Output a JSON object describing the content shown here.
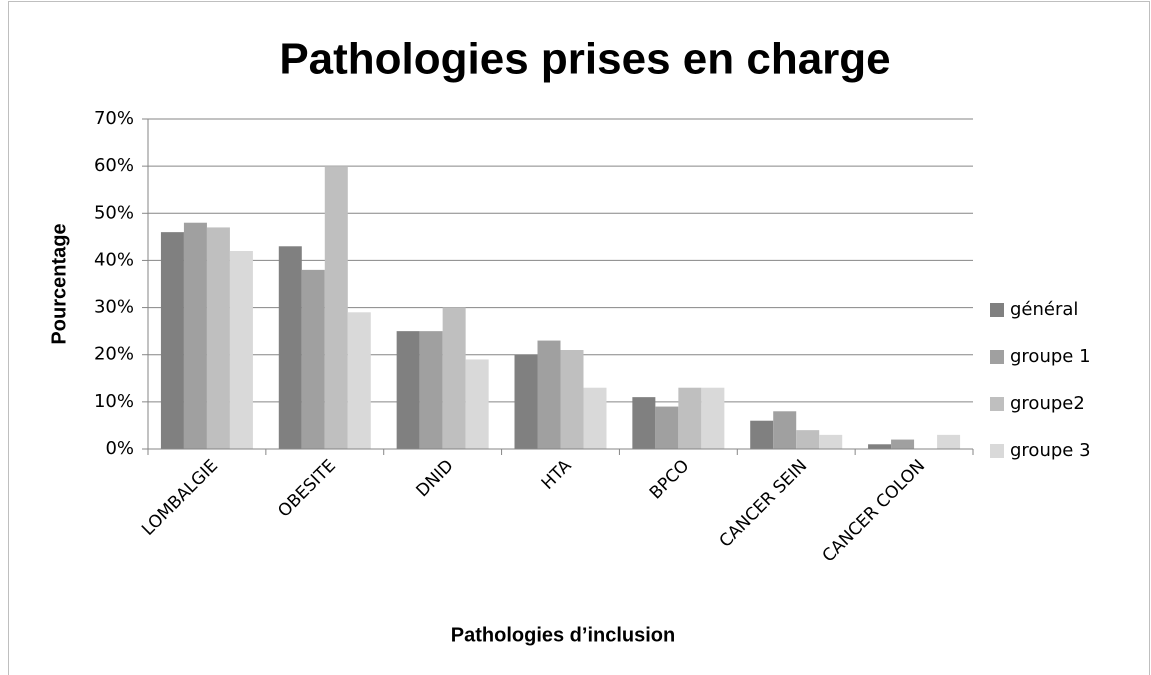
{
  "chart_data": {
    "type": "bar",
    "title": "Pathologies prises en charge",
    "xlabel": "Pathologies d’inclusion",
    "ylabel": "Pourcentage",
    "categories": [
      "LOMBALGIE",
      "OBESITE",
      "DNID",
      "HTA",
      "BPCO",
      "CANCER SEIN",
      "CANCER COLON"
    ],
    "series": [
      {
        "name": "général",
        "color": "#808080",
        "values": [
          46,
          43,
          25,
          20,
          11,
          6,
          1
        ]
      },
      {
        "name": "groupe 1",
        "color": "#a0a0a0",
        "values": [
          48,
          38,
          25,
          23,
          9,
          8,
          2
        ]
      },
      {
        "name": "groupe2",
        "color": "#bfbfbf",
        "values": [
          47,
          60,
          30,
          21,
          13,
          4,
          0
        ]
      },
      {
        "name": "groupe 3",
        "color": "#d9d9d9",
        "values": [
          42,
          29,
          19,
          13,
          13,
          3,
          3
        ]
      }
    ],
    "ylim": [
      0,
      70
    ],
    "yticks": [
      {
        "value": 0,
        "label": "0%"
      },
      {
        "value": 10,
        "label": "10%"
      },
      {
        "value": 20,
        "label": "20%"
      },
      {
        "value": 30,
        "label": "30%"
      },
      {
        "value": 40,
        "label": "40%"
      },
      {
        "value": 50,
        "label": "50%"
      },
      {
        "value": 60,
        "label": "60%"
      },
      {
        "value": 70,
        "label": "70%"
      }
    ],
    "grid": true,
    "legend": "right"
  }
}
